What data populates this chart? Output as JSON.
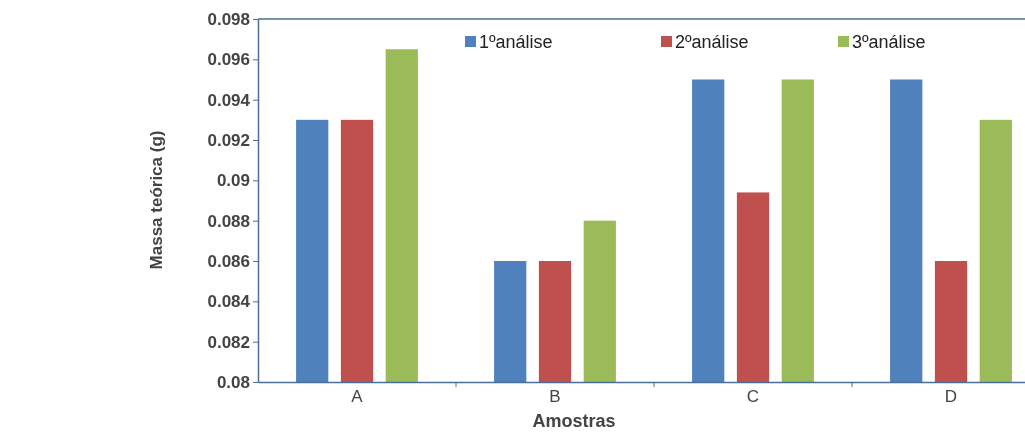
{
  "chart_data": {
    "type": "bar",
    "xlabel": "Amostras",
    "ylabel": "Massa teórica (g)",
    "categories": [
      "A",
      "B",
      "C",
      "D"
    ],
    "series": [
      {
        "name": "1ºanálise",
        "color": "#4f81bd",
        "values": [
          0.093,
          0.086,
          0.095,
          0.095
        ]
      },
      {
        "name": "2ºanálise",
        "color": "#c0504d",
        "values": [
          0.093,
          0.086,
          0.0894,
          0.086
        ]
      },
      {
        "name": "3ºanálise",
        "color": "#9bbb59",
        "values": [
          0.0965,
          0.088,
          0.095,
          0.093
        ]
      }
    ],
    "ylim": [
      0.08,
      0.098
    ],
    "yticks": [
      0.08,
      0.082,
      0.084,
      0.086,
      0.088,
      0.09,
      0.092,
      0.094,
      0.096,
      0.098
    ],
    "grid": false,
    "legend": "top"
  }
}
